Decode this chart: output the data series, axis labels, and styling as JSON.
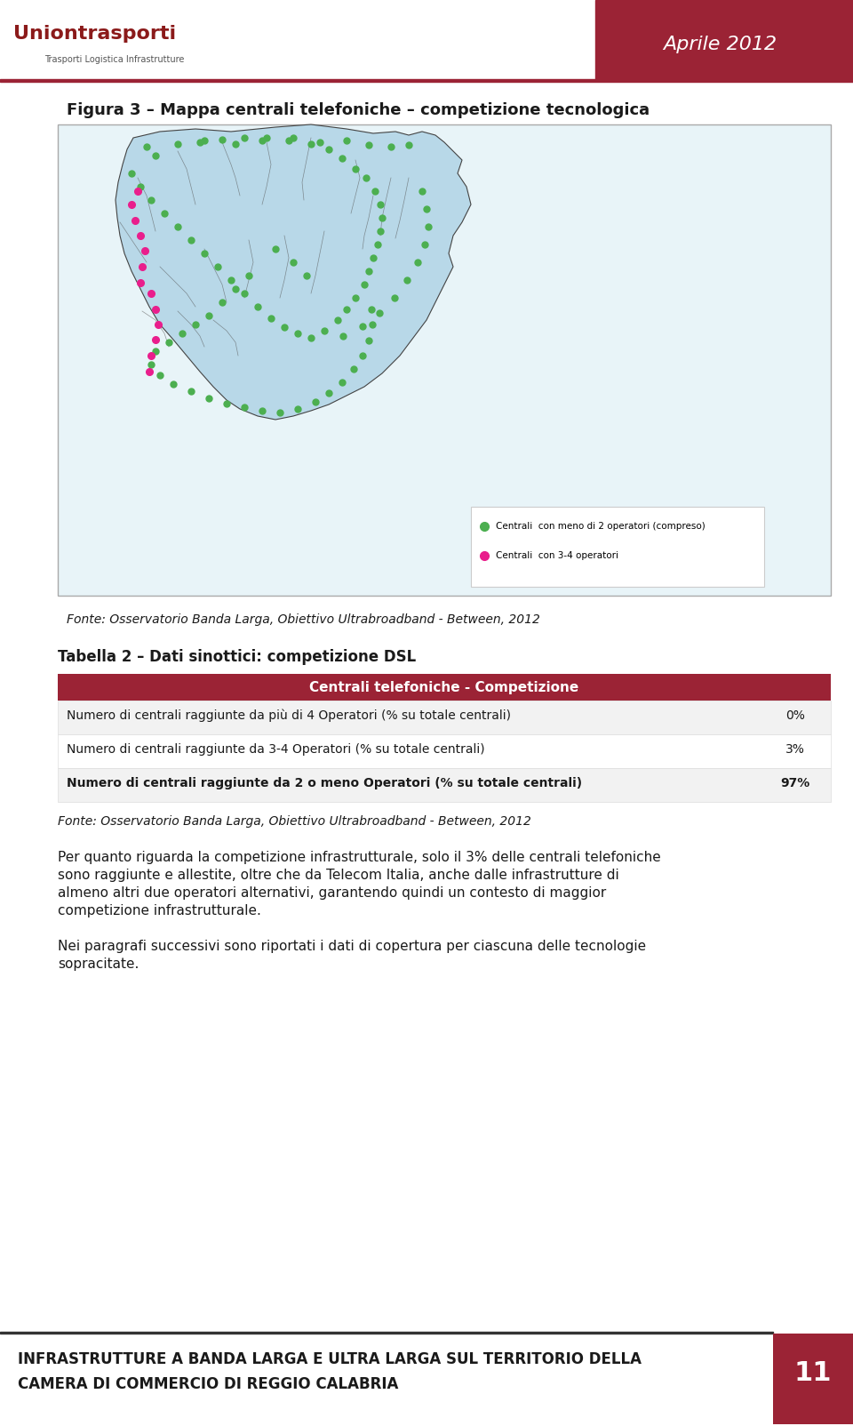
{
  "page_bg": "#ffffff",
  "header_bg": "#ffffff",
  "header_red_bg": "#9b2335",
  "header_text": "Aprile 2012",
  "header_text_color": "#ffffff",
  "logo_text": "Uniontrasporti",
  "logo_sub": "Trasporti Logistica Infrastrutture",
  "figure_title": "Figura 3 – Mappa centrali telefoniche – competizione tecnologica",
  "fonte_map": "Fonte: Osservatorio Banda Larga, Obiettivo Ultrabroadband - Between, 2012",
  "table_title": "Tabella 2 – Dati sinottici: competizione DSL",
  "table_header": "Centrali telefoniche - Competizione",
  "table_header_bg": "#9b2335",
  "table_header_text_color": "#ffffff",
  "table_rows": [
    {
      "label": "Numero di centrali raggiunte da più di 4 Operatori (% su totale centrali)",
      "value": "0%"
    },
    {
      "label": "Numero di centrali raggiunte da 3-4 Operatori (% su totale centrali)",
      "value": "3%"
    },
    {
      "label": "Numero di centrali raggiunte da 2 o meno Operatori (% su totale centrali)",
      "value": "97%"
    }
  ],
  "row_bg_odd": "#f2f2f2",
  "row_bg_even": "#ffffff",
  "fonte_table": "Fonte: Osservatorio Banda Larga, Obiettivo Ultrabroadband - Between, 2012",
  "body_text1": "Per quanto riguarda la competizione infrastrutturale, solo il 3% delle centrali telefoniche sono raggiunte e allestite, oltre che da Telecom Italia, anche dalle infrastrutture di almeno altri due operatori alternativi, garantendo quindi un contesto di maggior competizione infrastrutturale.",
  "body_text2": "Nei paragrafi successivi sono riportati i dati di copertura per ciascuna delle tecnologie sopracitate.",
  "footer_bg": "#ffffff",
  "footer_text": "INFRASTRUTTURE A BANDA LARGA E ULTRA LARGA SUL TERRITORIO DELLA\nCAMERA DI COMMERCIO DI REGGIO CALABRIA",
  "footer_text_color": "#1a1a1a",
  "footer_num_bg": "#9b2335",
  "footer_num": "11",
  "footer_num_color": "#ffffff",
  "top_line_color": "#9b2335",
  "map_border_color": "#cccccc",
  "legend_green": "#4caf50",
  "legend_pink": "#e91e8c",
  "legend_text1": "Centrali  con meno di 2 operatori (compreso)",
  "legend_text2": "Centrali  con 3-4 operatori"
}
